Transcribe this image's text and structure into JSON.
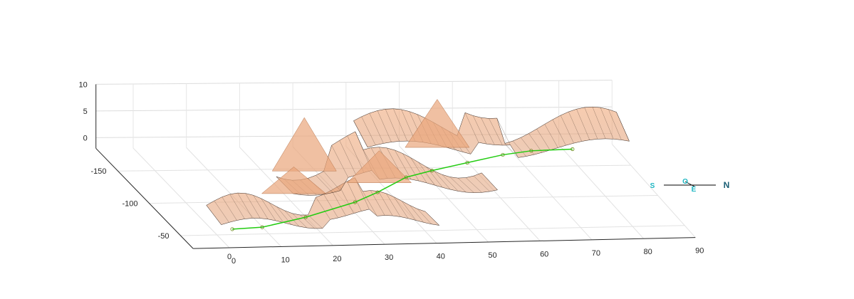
{
  "chart_data": {
    "type": "surface",
    "title": "",
    "xlabel": "",
    "ylabel": "",
    "zlabel": "",
    "grid": true,
    "x_axis": {
      "ticks": [
        0,
        10,
        20,
        30,
        40,
        50,
        60,
        70,
        80,
        90
      ],
      "range": [
        -7,
        90
      ]
    },
    "y_axis": {
      "ticks": [
        -50,
        -100,
        -150
      ],
      "range": [
        -185,
        -30
      ]
    },
    "z_axis": {
      "ticks": [
        0,
        5,
        10
      ],
      "range": [
        -2,
        10
      ]
    },
    "extra_tick": "0",
    "surface_color": "#e89b6d",
    "mesh_color": "#3a2a22",
    "path_color": "#22cc11",
    "path_points": [
      [
        2,
        -42,
        0
      ],
      [
        8,
        -44,
        0
      ],
      [
        18,
        -58,
        0
      ],
      [
        30,
        -80,
        0
      ],
      [
        36,
        -95,
        0
      ],
      [
        44,
        -118,
        0
      ],
      [
        50,
        -128,
        0
      ],
      [
        58,
        -140,
        0
      ],
      [
        66,
        -152,
        0
      ],
      [
        72,
        -158,
        0
      ],
      [
        80,
        -160,
        0
      ]
    ]
  },
  "compass": {
    "south": "S",
    "north": "N",
    "east": "E",
    "west": "O",
    "color_sew": "#1cb6c2",
    "color_n": "#1a5e74"
  }
}
